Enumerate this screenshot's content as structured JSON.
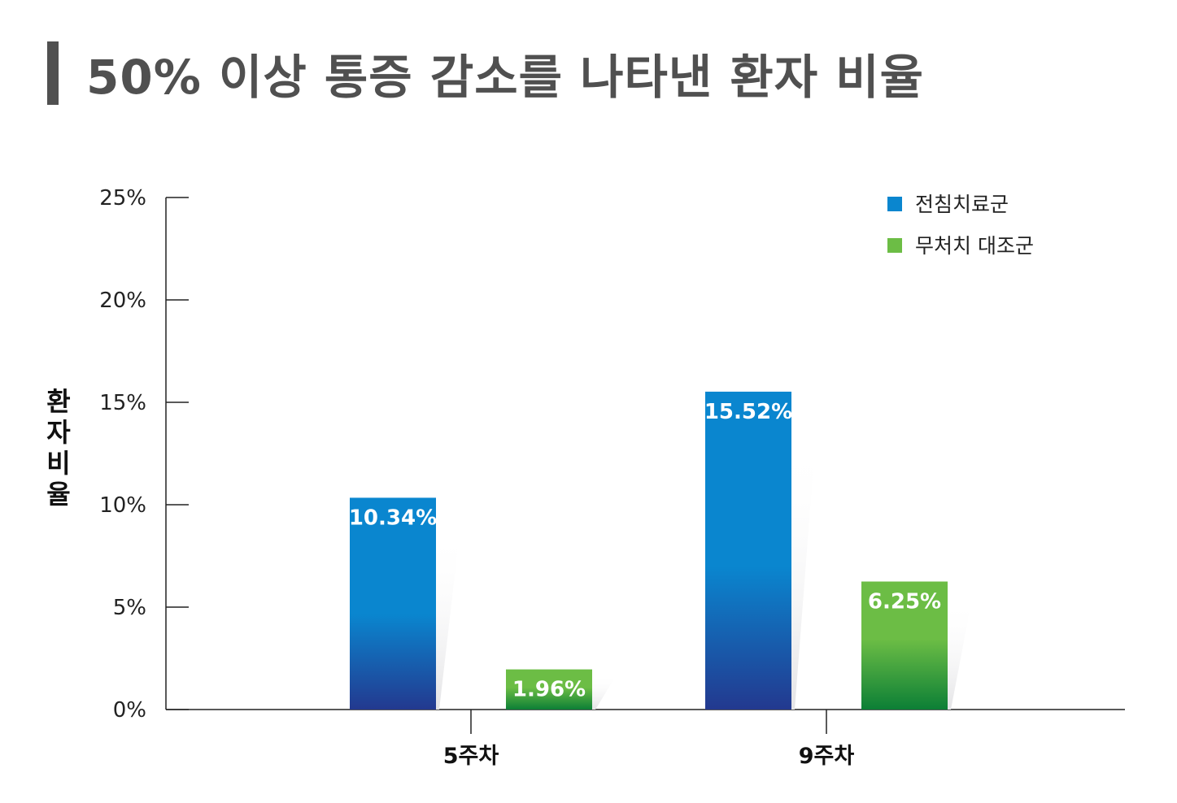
{
  "chart_data": {
    "type": "bar",
    "title": "50% 이상 통증 감소를 나타낸 환자 비율",
    "ylabel": "환자비율",
    "xlabel": "",
    "categories": [
      "5주차",
      "9주차"
    ],
    "ylim": [
      0,
      25
    ],
    "yticks": [
      0,
      5,
      10,
      15,
      20,
      25
    ],
    "ytick_labels": [
      "0%",
      "5%",
      "10%",
      "15%",
      "20%",
      "25%"
    ],
    "grid": false,
    "legend_position": "top-right",
    "series": [
      {
        "name": "전침치료군",
        "values": [
          10.34,
          15.52
        ],
        "labels": [
          "10.34%",
          "15.52%"
        ],
        "color": "#0a86cf",
        "color_bottom": "#23398f"
      },
      {
        "name": "무처치 대조군",
        "values": [
          1.96,
          6.25
        ],
        "labels": [
          "1.96%",
          "6.25%"
        ],
        "color": "#6cbd45",
        "color_bottom": "#0c7f36"
      }
    ]
  }
}
